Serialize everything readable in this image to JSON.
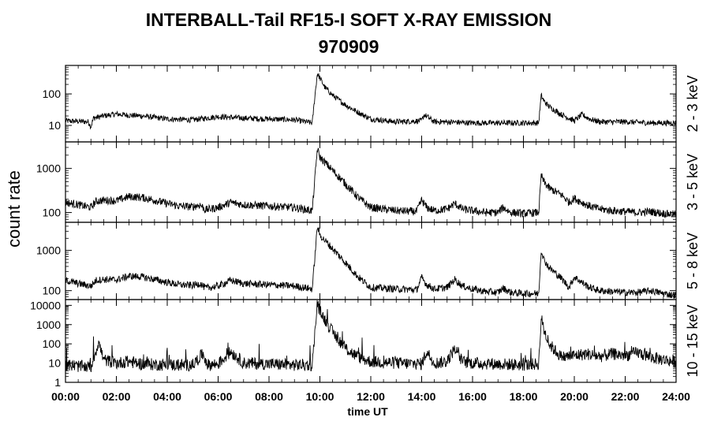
{
  "chart_data": {
    "type": "line",
    "title": "INTERBALL-Tail RF15-I SOFT X-RAY EMISSION",
    "subtitle": "970909",
    "ylabel": "count rate",
    "xlabel": "time UT",
    "x_range_hours": [
      0,
      24
    ],
    "x_ticks": [
      "00:00",
      "02:00",
      "04:00",
      "06:00",
      "08:00",
      "10:00",
      "12:00",
      "14:00",
      "16:00",
      "18:00",
      "20:00",
      "22:00",
      "24:00"
    ],
    "y_scale": "log",
    "grid": false,
    "panels": [
      {
        "band": "2 - 3 keV",
        "ylim": [
          3,
          800
        ],
        "y_ticks": [
          10,
          100
        ],
        "series": [
          {
            "x": [
              0.0,
              0.9,
              1.0,
              1.1,
              1.5,
              2.0,
              2.5,
              3.0,
              4.0,
              5.0,
              6.0,
              7.0,
              8.0,
              9.0,
              9.7,
              9.8,
              9.9,
              10.0,
              10.2,
              10.5,
              11.0,
              11.5,
              12.0,
              13.0,
              14.0,
              14.1,
              14.5,
              15.0,
              16.0,
              17.0,
              18.0,
              18.6,
              18.7,
              18.8,
              19.0,
              19.5,
              20.0,
              20.3,
              20.6,
              21.0,
              22.0,
              23.0,
              24.0
            ],
            "y": [
              14,
              13,
              9,
              17,
              20,
              23,
              21,
              20,
              16,
              15,
              19,
              17,
              16,
              15,
              12,
              80,
              450,
              320,
              160,
              90,
              45,
              26,
              16,
              13,
              14,
              22,
              13,
              13,
              12,
              12,
              12,
              12,
              90,
              60,
              40,
              22,
              14,
              22,
              16,
              13,
              13,
              12,
              12
            ]
          }
        ]
      },
      {
        "band": "3 - 5 keV",
        "ylim": [
          60,
          4000
        ],
        "y_ticks": [
          100,
          1000
        ],
        "series": [
          {
            "x": [
              0.0,
              0.5,
              1.0,
              1.2,
              1.5,
              2.0,
              2.5,
              3.0,
              3.5,
              4.0,
              4.5,
              5.0,
              5.3,
              5.5,
              6.0,
              6.5,
              7.0,
              8.0,
              9.0,
              9.7,
              9.9,
              10.0,
              10.5,
              11.0,
              11.5,
              12.0,
              13.0,
              13.8,
              14.0,
              14.2,
              14.5,
              15.0,
              15.3,
              15.6,
              16.0,
              16.5,
              17.0,
              17.2,
              17.5,
              18.0,
              18.6,
              18.7,
              18.8,
              19.0,
              19.5,
              19.8,
              20.0,
              20.3,
              20.6,
              21.0,
              21.5,
              22.0,
              22.5,
              23.0,
              23.5,
              24.0
            ],
            "y": [
              170,
              150,
              130,
              180,
              190,
              185,
              230,
              220,
              190,
              160,
              140,
              135,
              150,
              115,
              130,
              170,
              150,
              140,
              130,
              110,
              2800,
              1800,
              900,
              450,
              220,
              130,
              110,
              105,
              190,
              130,
              110,
              120,
              160,
              120,
              110,
              100,
              100,
              130,
              100,
              95,
              100,
              700,
              500,
              360,
              250,
              170,
              210,
              170,
              140,
              120,
              110,
              105,
              100,
              105,
              95,
              90
            ]
          }
        ]
      },
      {
        "band": "5 - 8 keV",
        "ylim": [
          60,
          5000
        ],
        "y_ticks": [
          100,
          1000
        ],
        "series": [
          {
            "x": [
              0.0,
              0.5,
              1.0,
              1.2,
              1.5,
              2.0,
              2.5,
              3.0,
              3.5,
              4.0,
              4.5,
              5.0,
              5.3,
              5.5,
              6.0,
              6.5,
              7.0,
              8.0,
              9.0,
              9.7,
              9.9,
              10.0,
              10.5,
              11.0,
              11.5,
              12.0,
              13.0,
              13.8,
              14.0,
              14.2,
              14.5,
              15.0,
              15.3,
              15.6,
              16.0,
              16.5,
              17.0,
              17.2,
              17.5,
              18.0,
              18.6,
              18.7,
              18.8,
              19.0,
              19.5,
              19.8,
              20.0,
              20.3,
              20.6,
              21.0,
              21.5,
              22.0,
              22.5,
              23.0,
              23.5,
              24.0
            ],
            "y": [
              180,
              150,
              130,
              180,
              190,
              185,
              230,
              220,
              190,
              160,
              140,
              135,
              150,
              115,
              130,
              180,
              150,
              140,
              130,
              110,
              4000,
              2400,
              1100,
              500,
              220,
              120,
              110,
              105,
              210,
              140,
              110,
              120,
              190,
              130,
              110,
              95,
              90,
              115,
              90,
              85,
              85,
              1050,
              600,
              380,
              200,
              120,
              220,
              160,
              120,
              100,
              95,
              90,
              90,
              100,
              85,
              75
            ]
          }
        ]
      },
      {
        "band": "10 - 15 keV",
        "ylim": [
          1,
          20000
        ],
        "y_ticks": [
          1,
          10,
          100,
          1000,
          10000
        ],
        "series": [
          {
            "x": [
              0.0,
              0.5,
              1.0,
              1.3,
              1.5,
              2.0,
              2.5,
              3.0,
              4.0,
              5.0,
              5.4,
              5.6,
              6.0,
              6.5,
              7.0,
              8.0,
              9.0,
              9.7,
              9.9,
              10.0,
              10.5,
              11.0,
              11.5,
              12.0,
              13.0,
              14.0,
              14.2,
              14.5,
              15.0,
              15.3,
              15.6,
              16.0,
              17.0,
              18.0,
              18.6,
              18.7,
              18.8,
              19.0,
              19.5,
              20.0,
              20.5,
              21.0,
              21.5,
              22.0,
              22.5,
              23.0,
              23.5,
              24.0
            ],
            "y": [
              8,
              7,
              6,
              120,
              15,
              10,
              12,
              9,
              8,
              8,
              30,
              8,
              9,
              40,
              10,
              9,
              8,
              8,
              12000,
              5000,
              400,
              60,
              20,
              12,
              10,
              9,
              40,
              10,
              12,
              60,
              12,
              10,
              9,
              8,
              9,
              2200,
              600,
              100,
              20,
              25,
              30,
              22,
              30,
              25,
              35,
              20,
              15,
              12
            ]
          }
        ]
      }
    ]
  }
}
